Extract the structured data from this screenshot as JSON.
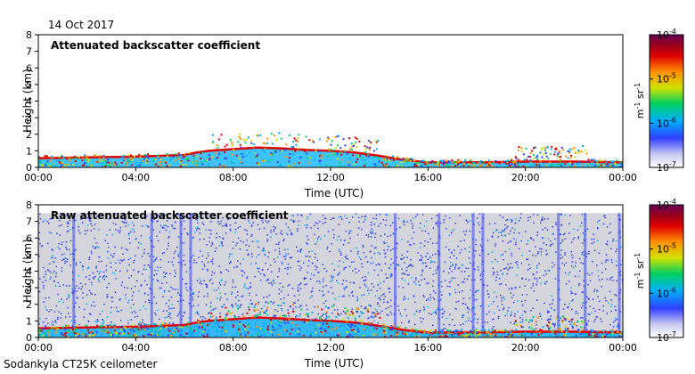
{
  "header": {
    "date": "14 Oct 2017"
  },
  "footer": {
    "instrument": "Sodankyla CT25K ceilometer"
  },
  "chart_data": [
    {
      "type": "heatmap",
      "title": "Attenuated backscatter coefficient",
      "xlabel": "Time (UTC)",
      "ylabel": "Height (km)",
      "x_ticks": [
        "00:00",
        "04:00",
        "08:00",
        "12:00",
        "16:00",
        "20:00",
        "00:00"
      ],
      "y_ticks": [
        "0",
        "1",
        "2",
        "3",
        "4",
        "5",
        "6",
        "7",
        "8"
      ],
      "xlim_hours": [
        0,
        24
      ],
      "ylim_km": [
        0,
        8
      ],
      "colorbar": {
        "scale": "log",
        "range": [
          1e-07,
          0.0001
        ],
        "ticks": [
          "10",
          "10",
          "10",
          "10"
        ],
        "tick_exponents": [
          "-7",
          "-6",
          "-5",
          "-4"
        ],
        "unit": "m",
        "unit_exp": "-1",
        "unit_b": "sr",
        "unit_b_exp": "-1"
      },
      "boundary_layer_height_km": [
        [
          0,
          0.55
        ],
        [
          2,
          0.6
        ],
        [
          4,
          0.65
        ],
        [
          5,
          0.7
        ],
        [
          6,
          0.75
        ],
        [
          6.5,
          0.9
        ],
        [
          7,
          1.0
        ],
        [
          8,
          1.1
        ],
        [
          9,
          1.2
        ],
        [
          10,
          1.15
        ],
        [
          11,
          1.05
        ],
        [
          12,
          1.0
        ],
        [
          13,
          0.9
        ],
        [
          14,
          0.7
        ],
        [
          15,
          0.45
        ],
        [
          16,
          0.3
        ],
        [
          18,
          0.3
        ],
        [
          20,
          0.35
        ],
        [
          22,
          0.35
        ],
        [
          24,
          0.3
        ]
      ]
    },
    {
      "type": "heatmap",
      "title": "Raw attenuated backscatter coefficient",
      "xlabel": "Time (UTC)",
      "ylabel": "Height (km)",
      "x_ticks": [
        "00:00",
        "04:00",
        "08:00",
        "12:00",
        "16:00",
        "20:00",
        "00:00"
      ],
      "y_ticks": [
        "0",
        "1",
        "2",
        "3",
        "4",
        "5",
        "6",
        "7",
        "8"
      ],
      "xlim_hours": [
        0,
        24
      ],
      "ylim_km": [
        0,
        8
      ],
      "colorbar": {
        "scale": "log",
        "range": [
          1e-07,
          0.0001
        ],
        "ticks": [
          "10",
          "10",
          "10",
          "10"
        ],
        "tick_exponents": [
          "-7",
          "-6",
          "-5",
          "-4"
        ],
        "unit": "m",
        "unit_exp": "-1",
        "unit_b": "sr",
        "unit_b_exp": "-1"
      },
      "noise_top_km": 7.5
    }
  ]
}
